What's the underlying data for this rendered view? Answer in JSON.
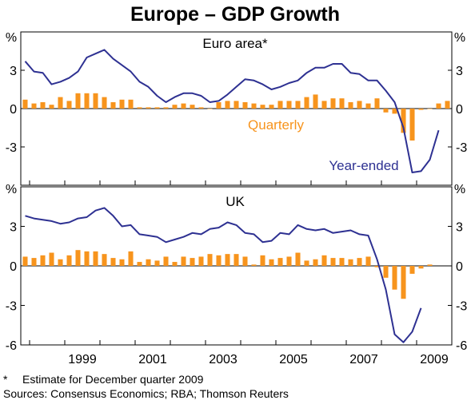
{
  "title": "Europe – GDP Growth",
  "unit_label": "%",
  "colors": {
    "bars": "#f7941d",
    "line": "#2e3192",
    "axis": "#000000",
    "grid": "#000000"
  },
  "notes": {
    "footnote_marker": "*",
    "footnote": "Estimate for December quarter 2009",
    "sources": "Sources: Consensus Economics; RBA; Thomson Reuters"
  },
  "chart_data": {
    "type": "bar+line",
    "title": "Europe – GDP Growth",
    "x_tick_labels": [
      "1999",
      "2001",
      "2003",
      "2005",
      "2007",
      "2009"
    ],
    "x_tick_years": [
      1999,
      2001,
      2003,
      2005,
      2007,
      2009
    ],
    "x_range": [
      "1997-Q4",
      "2009-Q4"
    ],
    "quarters": [
      "1997-Q4",
      "1998-Q1",
      "1998-Q2",
      "1998-Q3",
      "1998-Q4",
      "1999-Q1",
      "1999-Q2",
      "1999-Q3",
      "1999-Q4",
      "2000-Q1",
      "2000-Q2",
      "2000-Q3",
      "2000-Q4",
      "2001-Q1",
      "2001-Q2",
      "2001-Q3",
      "2001-Q4",
      "2002-Q1",
      "2002-Q2",
      "2002-Q3",
      "2002-Q4",
      "2003-Q1",
      "2003-Q2",
      "2003-Q3",
      "2003-Q4",
      "2004-Q1",
      "2004-Q2",
      "2004-Q3",
      "2004-Q4",
      "2005-Q1",
      "2005-Q2",
      "2005-Q3",
      "2005-Q4",
      "2006-Q1",
      "2006-Q2",
      "2006-Q3",
      "2006-Q4",
      "2007-Q1",
      "2007-Q2",
      "2007-Q3",
      "2007-Q4",
      "2008-Q1",
      "2008-Q2",
      "2008-Q3",
      "2008-Q4",
      "2009-Q1",
      "2009-Q2",
      "2009-Q3",
      "2009-Q4"
    ],
    "panels": [
      {
        "name": "Euro area*",
        "ylim": [
          -6,
          6
        ],
        "yticks_labeled": [
          -3,
          0,
          3
        ],
        "series": [
          {
            "name": "Quarterly",
            "kind": "bar",
            "values": [
              0.7,
              0.4,
              0.5,
              0.3,
              0.9,
              0.6,
              1.2,
              1.2,
              1.2,
              0.9,
              0.5,
              0.7,
              0.7,
              0.1,
              0.1,
              0.1,
              0.1,
              0.3,
              0.4,
              0.3,
              0.1,
              0.0,
              0.5,
              0.6,
              0.6,
              0.5,
              0.4,
              0.3,
              0.3,
              0.6,
              0.6,
              0.6,
              0.9,
              1.1,
              0.6,
              0.8,
              0.8,
              0.5,
              0.6,
              0.4,
              0.8,
              -0.3,
              -0.4,
              -1.9,
              -2.5,
              -0.1,
              0.0,
              0.4,
              0.6
            ]
          },
          {
            "name": "Year-ended",
            "kind": "line",
            "values": [
              3.7,
              2.9,
              2.8,
              1.9,
              2.1,
              2.4,
              2.9,
              4.0,
              4.3,
              4.6,
              3.9,
              3.4,
              2.9,
              2.1,
              1.7,
              1.0,
              0.5,
              0.9,
              1.2,
              1.2,
              1.0,
              0.5,
              0.6,
              1.1,
              1.7,
              2.3,
              2.2,
              1.9,
              1.5,
              1.7,
              2.0,
              2.2,
              2.8,
              3.2,
              3.2,
              3.5,
              3.5,
              2.8,
              2.7,
              2.2,
              2.2,
              1.4,
              0.5,
              -1.5,
              -5.0,
              -4.9,
              -4.0,
              -1.7
            ]
          }
        ]
      },
      {
        "name": "UK",
        "ylim": [
          -6,
          6
        ],
        "yticks_labeled": [
          -6,
          -3,
          0,
          3
        ],
        "series": [
          {
            "name": "Quarterly",
            "kind": "bar",
            "values": [
              0.7,
              0.6,
              0.8,
              1.0,
              0.5,
              0.8,
              1.2,
              1.1,
              1.1,
              0.9,
              0.6,
              0.5,
              1.1,
              0.3,
              0.5,
              0.4,
              0.7,
              0.3,
              0.7,
              0.6,
              0.7,
              0.9,
              0.8,
              0.9,
              0.9,
              0.7,
              0.1,
              0.8,
              0.5,
              0.6,
              0.7,
              1.0,
              0.4,
              0.5,
              0.8,
              0.6,
              0.6,
              0.5,
              0.6,
              0.7,
              -0.1,
              -0.9,
              -1.8,
              -2.5,
              -0.6,
              -0.2,
              0.1
            ]
          },
          {
            "name": "Year-ended",
            "kind": "line",
            "values": [
              3.8,
              3.6,
              3.5,
              3.4,
              3.2,
              3.3,
              3.6,
              3.7,
              4.2,
              4.4,
              3.8,
              3.0,
              3.1,
              2.4,
              2.3,
              2.2,
              1.8,
              2.0,
              2.2,
              2.5,
              2.4,
              2.8,
              2.9,
              3.3,
              3.1,
              2.5,
              2.4,
              1.8,
              1.9,
              2.5,
              2.4,
              3.1,
              2.8,
              2.7,
              2.8,
              2.5,
              2.6,
              2.7,
              2.4,
              2.3,
              0.5,
              -1.8,
              -5.2,
              -5.8,
              -5.0,
              -3.2
            ]
          }
        ]
      }
    ],
    "series_labels": {
      "Quarterly": "Quarterly",
      "Year-ended": "Year-ended"
    },
    "grid": false
  }
}
